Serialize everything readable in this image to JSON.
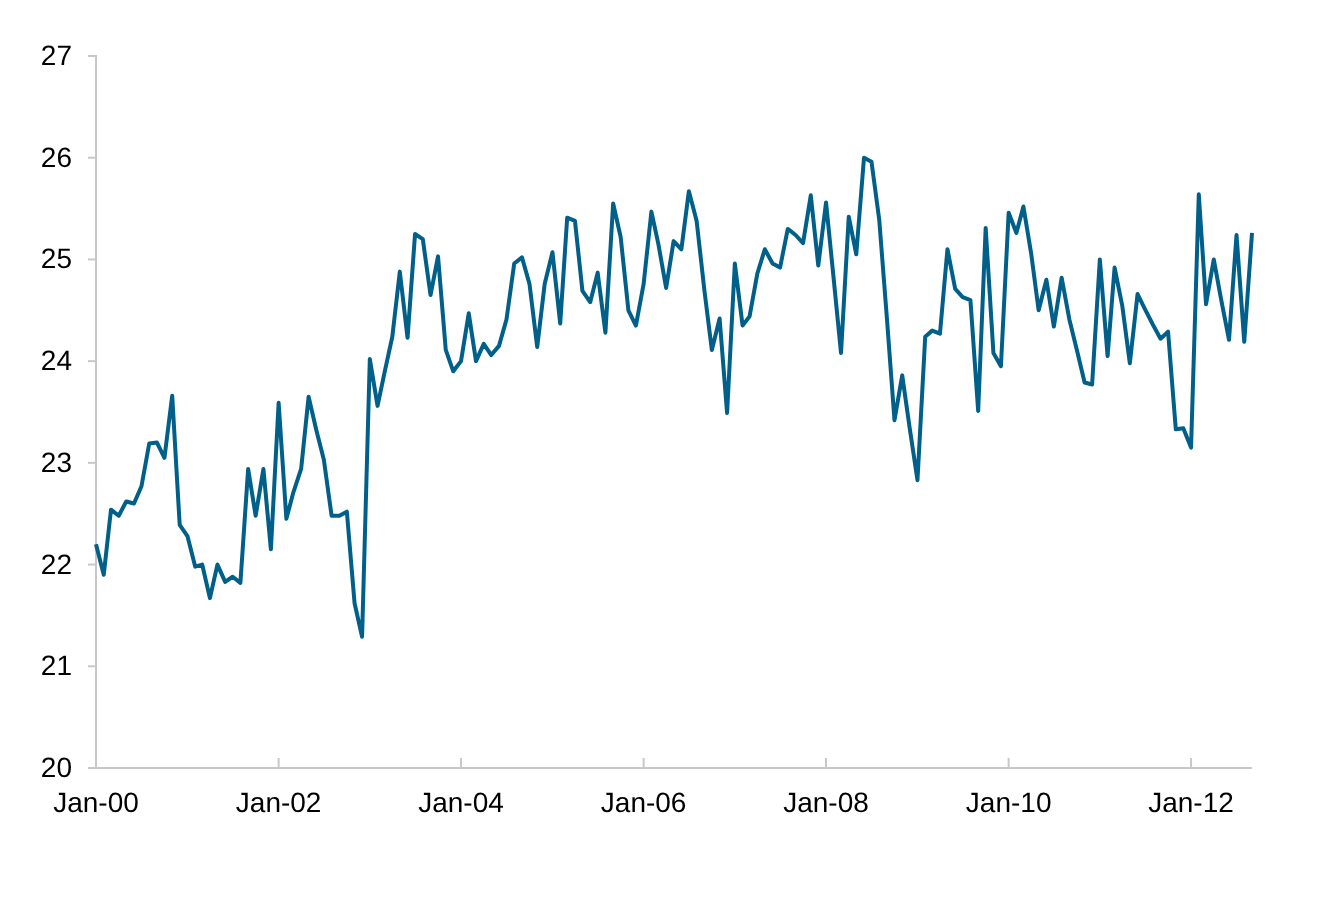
{
  "chart_data": {
    "type": "line",
    "x": [
      "2000-01",
      "2000-02",
      "2000-03",
      "2000-04",
      "2000-05",
      "2000-06",
      "2000-07",
      "2000-08",
      "2000-09",
      "2000-10",
      "2000-11",
      "2000-12",
      "2001-01",
      "2001-02",
      "2001-03",
      "2001-04",
      "2001-05",
      "2001-06",
      "2001-07",
      "2001-08",
      "2001-09",
      "2001-10",
      "2001-11",
      "2001-12",
      "2002-01",
      "2002-02",
      "2002-03",
      "2002-04",
      "2002-05",
      "2002-06",
      "2002-07",
      "2002-08",
      "2002-09",
      "2002-10",
      "2002-11",
      "2002-12",
      "2003-01",
      "2003-02",
      "2003-03",
      "2003-04",
      "2003-05",
      "2003-06",
      "2003-07",
      "2003-08",
      "2003-09",
      "2003-10",
      "2003-11",
      "2003-12",
      "2004-01",
      "2004-02",
      "2004-03",
      "2004-04",
      "2004-05",
      "2004-06",
      "2004-07",
      "2004-08",
      "2004-09",
      "2004-10",
      "2004-11",
      "2004-12",
      "2005-01",
      "2005-02",
      "2005-03",
      "2005-04",
      "2005-05",
      "2005-06",
      "2005-07",
      "2005-08",
      "2005-09",
      "2005-10",
      "2005-11",
      "2005-12",
      "2006-01",
      "2006-02",
      "2006-03",
      "2006-04",
      "2006-05",
      "2006-06",
      "2006-07",
      "2006-08",
      "2006-09",
      "2006-10",
      "2006-11",
      "2006-12",
      "2007-01",
      "2007-02",
      "2007-03",
      "2007-04",
      "2007-05",
      "2007-06",
      "2007-07",
      "2007-08",
      "2007-09",
      "2007-10",
      "2007-11",
      "2007-12",
      "2008-01",
      "2008-02",
      "2008-03",
      "2008-04",
      "2008-05",
      "2008-06",
      "2008-07",
      "2008-08",
      "2008-09",
      "2008-10",
      "2008-11",
      "2008-12",
      "2009-01",
      "2009-02",
      "2009-03",
      "2009-04",
      "2009-05",
      "2009-06",
      "2009-07",
      "2009-08",
      "2009-09",
      "2009-10",
      "2009-11",
      "2009-12",
      "2010-01",
      "2010-02",
      "2010-03",
      "2010-04",
      "2010-05",
      "2010-06",
      "2010-07",
      "2010-08",
      "2010-09",
      "2010-10",
      "2010-11",
      "2010-12",
      "2011-01",
      "2011-02",
      "2011-03",
      "2011-04",
      "2011-05",
      "2011-06",
      "2011-07",
      "2011-08",
      "2011-09",
      "2011-10",
      "2011-11",
      "2011-12",
      "2012-01",
      "2012-02",
      "2012-03",
      "2012-04",
      "2012-05",
      "2012-06",
      "2012-07",
      "2012-08",
      "2012-09"
    ],
    "series": [
      {
        "color": "#00608a",
        "values": [
          22.2,
          21.9,
          22.54,
          22.48,
          22.62,
          22.6,
          22.77,
          23.19,
          23.2,
          23.05,
          23.66,
          22.39,
          22.28,
          21.98,
          22.0,
          21.67,
          22.0,
          21.83,
          21.88,
          21.82,
          22.94,
          22.48,
          22.94,
          22.15,
          23.59,
          22.45,
          22.71,
          22.94,
          23.65,
          23.32,
          23.03,
          22.48,
          22.48,
          22.52,
          21.62,
          21.29,
          24.02,
          23.56,
          23.89,
          24.24,
          24.88,
          24.23,
          25.25,
          25.2,
          24.65,
          25.03,
          24.11,
          23.9,
          24.0,
          24.47,
          24.0,
          24.17,
          24.06,
          24.15,
          24.41,
          24.96,
          25.02,
          24.76,
          24.14,
          24.76,
          25.07,
          24.37,
          25.41,
          25.38,
          24.69,
          24.58,
          24.87,
          24.28,
          25.55,
          25.22,
          24.5,
          24.35,
          24.76,
          25.47,
          25.15,
          24.72,
          25.18,
          25.1,
          25.67,
          25.38,
          24.7,
          24.11,
          24.42,
          23.49,
          24.96,
          24.35,
          24.44,
          24.86,
          25.1,
          24.96,
          24.92,
          25.3,
          25.24,
          25.16,
          25.63,
          24.94,
          25.56,
          24.8,
          24.08,
          25.42,
          25.05,
          26.0,
          25.96,
          25.39,
          24.41,
          23.42,
          23.86,
          23.34,
          22.83,
          24.24,
          24.3,
          24.27,
          25.1,
          24.71,
          24.63,
          24.6,
          23.51,
          25.31,
          24.08,
          23.95,
          25.46,
          25.26,
          25.52,
          25.06,
          24.5,
          24.8,
          24.34,
          24.82,
          24.41,
          24.11,
          23.79,
          23.77,
          25.0,
          24.05,
          24.92,
          24.54,
          23.98,
          24.66,
          24.51,
          24.36,
          24.22,
          24.29,
          23.33,
          23.34,
          23.15,
          25.64,
          24.56,
          25.0,
          24.6,
          24.21,
          25.24,
          24.19,
          25.26
        ]
      }
    ],
    "xlim": [
      "2000-01",
      "2012-09"
    ],
    "xticks": [
      {
        "value": "2000-01",
        "label": "Jan-00"
      },
      {
        "value": "2002-01",
        "label": "Jan-02"
      },
      {
        "value": "2004-01",
        "label": "Jan-04"
      },
      {
        "value": "2006-01",
        "label": "Jan-06"
      },
      {
        "value": "2008-01",
        "label": "Jan-08"
      },
      {
        "value": "2010-01",
        "label": "Jan-10"
      },
      {
        "value": "2012-01",
        "label": "Jan-12"
      }
    ],
    "ylim": [
      20,
      27
    ],
    "yticks": [
      20,
      21,
      22,
      23,
      24,
      25,
      26,
      27
    ],
    "grid": false,
    "marker": "none",
    "line_style": "solid"
  }
}
